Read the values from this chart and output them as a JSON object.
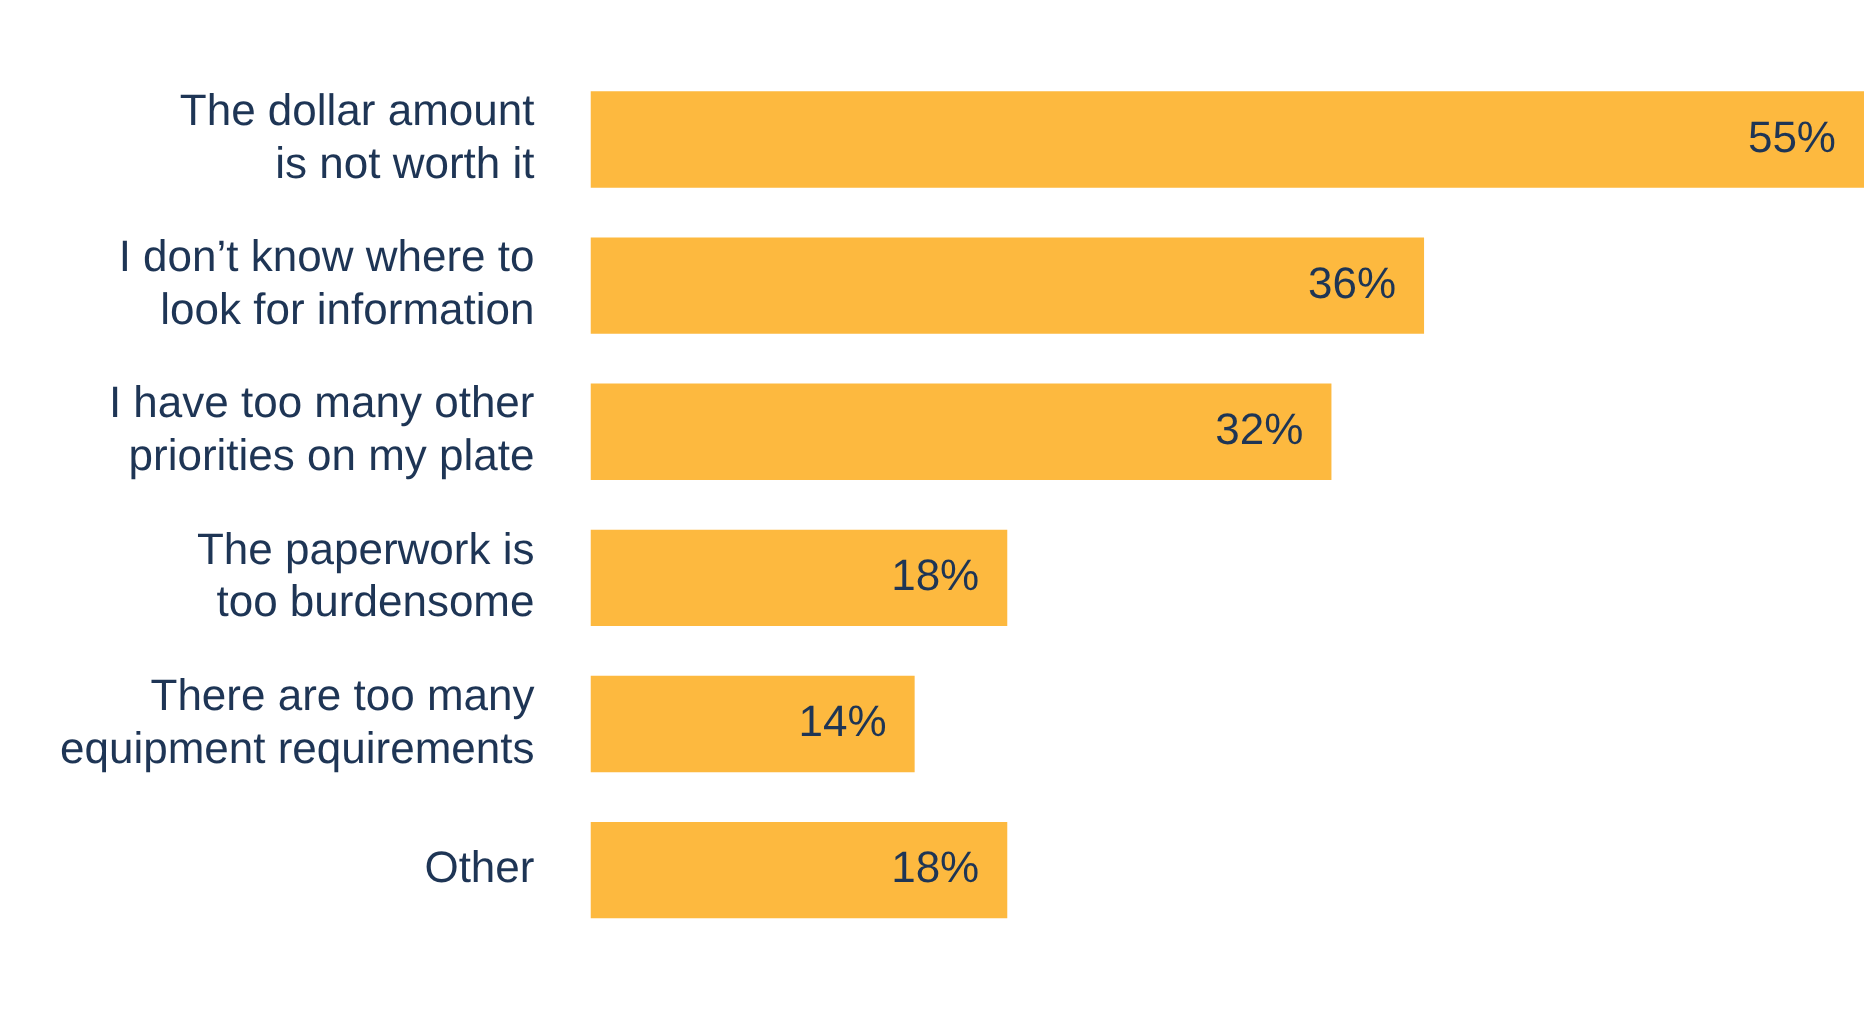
{
  "chart_data": {
    "type": "bar",
    "orientation": "horizontal",
    "categories": [
      "The dollar amount is not worth it",
      "I don’t know where to look for information",
      "I have too many other priorities on my plate",
      "The paperwork is too burdensome",
      "There are too many equipment requirements",
      "Other"
    ],
    "values": [
      55,
      36,
      32,
      18,
      14,
      18
    ],
    "value_labels": [
      "55%",
      "36%",
      "32%",
      "18%",
      "14%",
      "18%"
    ],
    "color": "#fdb93f",
    "grid": false,
    "legend": false
  }
}
